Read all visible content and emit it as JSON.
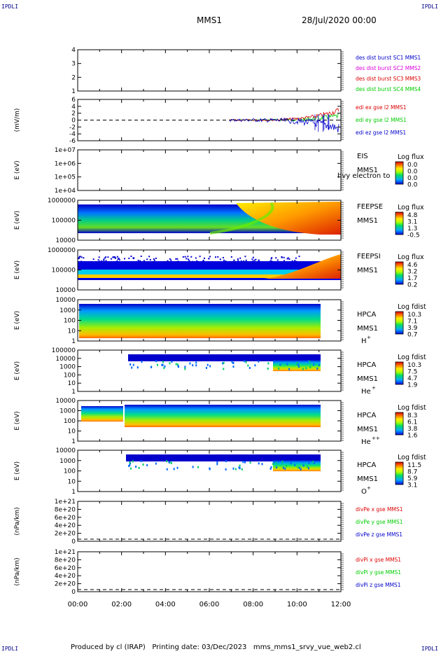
{
  "header": {
    "corner_tl": "IPDLI",
    "corner_tr": "IPDLI",
    "corner_bl": "IPDLI",
    "corner_br": "IPDLI",
    "mission": "MMS1",
    "date": "28/Jul/2020 00:00"
  },
  "footer": {
    "text": "Produced by cl (IRAP)   Printing date: 03/Dec/2023   mms_mms1_srvy_vue_web2.cl"
  },
  "colors": {
    "black": "#000000",
    "red": "#dd0000",
    "magenta": "#dd00dd",
    "green": "#00cc00",
    "blue": "#0000cc"
  },
  "chart_data": [
    {
      "id": "p1",
      "type": "line",
      "ylabel": "",
      "yticks": [
        "4",
        "3",
        "2",
        "1"
      ],
      "legend": [
        {
          "label": "des dist burst SC1 MMS1",
          "color": "#0000cc"
        },
        {
          "label": "des dist burst SC2 MMS2",
          "color": "#dd00dd"
        },
        {
          "label": "des dist burst SC3 MMS3",
          "color": "#dd0000"
        },
        {
          "label": "des dist burst SC4 MMS4",
          "color": "#00cc00"
        }
      ]
    },
    {
      "id": "p2",
      "type": "line",
      "ylabel": "(mV/m)",
      "yticks": [
        "6",
        "4",
        "2",
        "0",
        "-2",
        "-4",
        "-6"
      ],
      "ylim": [
        -6,
        6
      ],
      "legend": [
        {
          "label": "edi ex gse l2 MMS1",
          "color": "#dd0000"
        },
        {
          "label": "edi ey gse l2 MMS1",
          "color": "#00cc00"
        },
        {
          "label": "edi ez gse l2 MMS1",
          "color": "#0000cc"
        }
      ]
    },
    {
      "id": "p3",
      "type": "heatmap",
      "ylabel": "E (eV)",
      "yticks": [
        "1e+07",
        "1e+06",
        "1e+05",
        "1e+04"
      ],
      "right_labels": [
        "EIS",
        "MMS1"
      ],
      "overlay": "hvy electron to",
      "cbar_title": "Log flux",
      "cbar_ticks": [
        "0.0",
        "0.0",
        "0.0",
        "0.0"
      ]
    },
    {
      "id": "p4",
      "type": "heatmap",
      "ylabel": "E (eV)",
      "yticks": [
        "1000000",
        "100000",
        "10000"
      ],
      "right_labels": [
        "FEEPSE",
        "MMS1"
      ],
      "cbar_title": "Log flux",
      "cbar_ticks": [
        "4.8",
        "3.1",
        "1.3",
        "-0.5"
      ]
    },
    {
      "id": "p5",
      "type": "heatmap",
      "ylabel": "E (eV)",
      "yticks": [
        "1000000",
        "100000",
        "10000"
      ],
      "right_labels": [
        "FEEPSI",
        "MMS1"
      ],
      "cbar_title": "Log flux",
      "cbar_ticks": [
        "4.6",
        "3.2",
        "1.7",
        "0.2"
      ]
    },
    {
      "id": "p6",
      "type": "heatmap",
      "ylabel": "E (eV)",
      "yticks": [
        "10000",
        "1000",
        "100",
        "10",
        "1"
      ],
      "right_labels": [
        "HPCA",
        "MMS1"
      ],
      "species": "H",
      "species_sup": "+",
      "cbar_title": "Log fdist",
      "cbar_ticks": [
        "10.3",
        "7.1",
        "3.9",
        "0.7"
      ]
    },
    {
      "id": "p7",
      "type": "heatmap",
      "ylabel": "E (eV)",
      "yticks": [
        "100000",
        "10000",
        "1000",
        "100",
        "10",
        "1"
      ],
      "right_labels": [
        "HPCA",
        "MMS1"
      ],
      "species": "He",
      "species_sup": "+",
      "cbar_title": "Log fdist",
      "cbar_ticks": [
        "10.3",
        "7.5",
        "4.7",
        "1.9"
      ]
    },
    {
      "id": "p8",
      "type": "heatmap",
      "ylabel": "E (eV)",
      "yticks": [
        "10000",
        "1000",
        "100",
        "10",
        "1"
      ],
      "right_labels": [
        "HPCA",
        "MMS1"
      ],
      "species": "He",
      "species_sup": "++",
      "cbar_title": "Log fdist",
      "cbar_ticks": [
        "8.3",
        "6.1",
        "3.8",
        "1.6"
      ]
    },
    {
      "id": "p9",
      "type": "heatmap",
      "ylabel": "E (eV)",
      "yticks": [
        "10000",
        "1000",
        "100",
        "10",
        "1"
      ],
      "right_labels": [
        "HPCA",
        "MMS1"
      ],
      "species": "O",
      "species_sup": "+",
      "cbar_title": "Log fdist",
      "cbar_ticks": [
        "11.5",
        "8.7",
        "5.9",
        "3.1"
      ]
    },
    {
      "id": "p10",
      "type": "line",
      "ylabel": "(nPa/km)",
      "yticks": [
        "1e+21",
        "8e+20",
        "6e+20",
        "4e+20",
        "2e+20",
        "0"
      ],
      "legend": [
        {
          "label": "divPe x gse MMS1",
          "color": "#dd0000"
        },
        {
          "label": "divPe y gse MMS1",
          "color": "#00cc00"
        },
        {
          "label": "divPe z gse MMS1",
          "color": "#0000cc"
        }
      ]
    },
    {
      "id": "p11",
      "type": "line",
      "ylabel": "(nPa/km)",
      "yticks": [
        "1e+21",
        "8e+20",
        "6e+20",
        "4e+20",
        "2e+20",
        "0"
      ],
      "legend": [
        {
          "label": "divPi x gse MMS1",
          "color": "#dd0000"
        },
        {
          "label": "divPi y gse MMS1",
          "color": "#00cc00"
        },
        {
          "label": "divPi z gse MMS1",
          "color": "#0000cc"
        }
      ],
      "xticks": [
        "00:00",
        "02:00",
        "04:00",
        "06:00",
        "08:00",
        "10:00",
        "12:00"
      ]
    }
  ]
}
